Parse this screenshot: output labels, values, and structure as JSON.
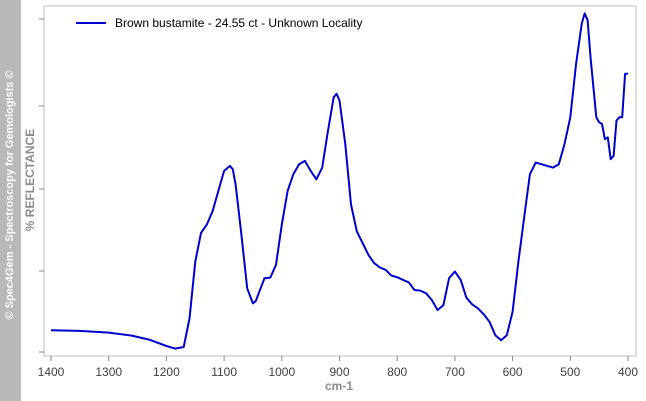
{
  "watermark": "© Spec4Gem - Spectroscopy for Gemologists ©",
  "chart_data": {
    "type": "line",
    "title": "",
    "xlabel": "cm-1",
    "ylabel": "% REFLECTANCE",
    "xlim": [
      1400,
      400
    ],
    "x_reversed": true,
    "x_ticks": [
      1400,
      1300,
      1200,
      1100,
      1000,
      900,
      800,
      700,
      600,
      500,
      400
    ],
    "y_tick_labels_shown": false,
    "grid": false,
    "legend_position": "top-left",
    "series": [
      {
        "name": "Brown bustamite - 24.55 ct - Unknown Locality",
        "color": "#0000cc",
        "x": [
          1400,
          1350,
          1300,
          1260,
          1230,
          1200,
          1185,
          1170,
          1160,
          1150,
          1140,
          1130,
          1120,
          1110,
          1100,
          1090,
          1085,
          1080,
          1070,
          1060,
          1050,
          1045,
          1040,
          1030,
          1020,
          1010,
          1000,
          990,
          980,
          970,
          960,
          950,
          940,
          930,
          920,
          910,
          905,
          900,
          890,
          880,
          870,
          860,
          850,
          840,
          830,
          820,
          810,
          800,
          790,
          780,
          770,
          760,
          750,
          740,
          730,
          720,
          710,
          700,
          690,
          680,
          670,
          660,
          650,
          640,
          630,
          620,
          610,
          600,
          590,
          580,
          570,
          560,
          550,
          540,
          530,
          520,
          510,
          500,
          490,
          480,
          475,
          470,
          465,
          460,
          455,
          450,
          445,
          440,
          435,
          430,
          425,
          420,
          415,
          410,
          405,
          400
        ],
        "y": [
          6.5,
          6.3,
          5.8,
          4.9,
          3.7,
          1.8,
          1.0,
          1.5,
          10,
          27,
          35.5,
          38,
          42,
          48,
          54,
          55.5,
          54.5,
          50,
          35,
          19,
          14.5,
          15.2,
          17.5,
          22,
          22.2,
          26,
          38,
          48,
          53,
          56,
          57,
          54,
          51.5,
          55,
          66,
          76,
          77,
          75,
          62,
          44,
          36,
          32.5,
          29,
          26.5,
          25.2,
          24.5,
          22.8,
          22.3,
          21.5,
          20.8,
          18.5,
          18.3,
          17.5,
          15.5,
          12.5,
          14,
          22,
          24,
          21.5,
          16.2,
          14.2,
          13,
          11.2,
          9,
          5,
          3.5,
          5,
          12,
          27,
          40,
          53,
          56.5,
          56,
          55.5,
          55,
          56,
          62,
          70,
          86,
          98,
          101,
          99,
          88,
          79,
          70,
          68.5,
          68,
          63.5,
          64,
          57.5,
          58.5,
          69,
          70,
          70,
          83,
          83
        ]
      }
    ]
  }
}
